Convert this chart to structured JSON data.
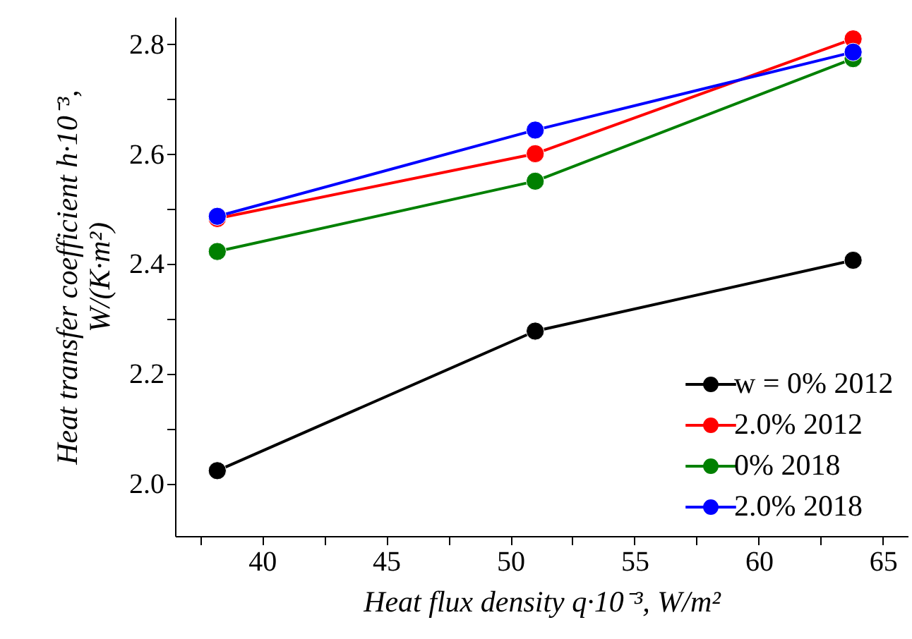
{
  "chart_data": {
    "type": "line",
    "xlabel": "Heat flux density q·10⁻³, W/m²",
    "ylabel": "Heat transfer coefficient h·10⁻³,\nW/(K·m²)",
    "x": [
      38.2,
      51.0,
      63.8
    ],
    "series": [
      {
        "name": "w = 0% 2012",
        "color": "#000000",
        "values": [
          2.024,
          2.278,
          2.407
        ]
      },
      {
        "name": "2.0% 2012",
        "color": "#ff0000",
        "values": [
          2.483,
          2.601,
          2.81
        ]
      },
      {
        "name": "0% 2018",
        "color": "#008000",
        "values": [
          2.423,
          2.551,
          2.774
        ]
      },
      {
        "name": "2.0% 2018",
        "color": "#0000ff",
        "values": [
          2.487,
          2.644,
          2.786
        ]
      }
    ],
    "xlim": [
      36.5,
      66
    ],
    "xticks": [
      {
        "value": 37.5,
        "label": null
      },
      40,
      {
        "value": 42.5,
        "label": null
      },
      45,
      {
        "value": 47.5,
        "label": null
      },
      50,
      {
        "value": 52.5,
        "label": null
      },
      55,
      {
        "value": 57.5,
        "label": null
      },
      60,
      {
        "value": 62.5,
        "label": null
      },
      65
    ],
    "ylim": [
      1.905,
      2.85
    ],
    "yticks": [
      {
        "value": 2.0,
        "label": "2.0"
      },
      {
        "value": 2.1,
        "label": null
      },
      2.2,
      {
        "value": 2.3,
        "label": null
      },
      2.4,
      {
        "value": 2.5,
        "label": null
      },
      2.6,
      {
        "value": 2.7,
        "label": null
      },
      2.8
    ],
    "grid": false,
    "legend": "bottom right",
    "marker": "circle",
    "line_style": "solid"
  }
}
